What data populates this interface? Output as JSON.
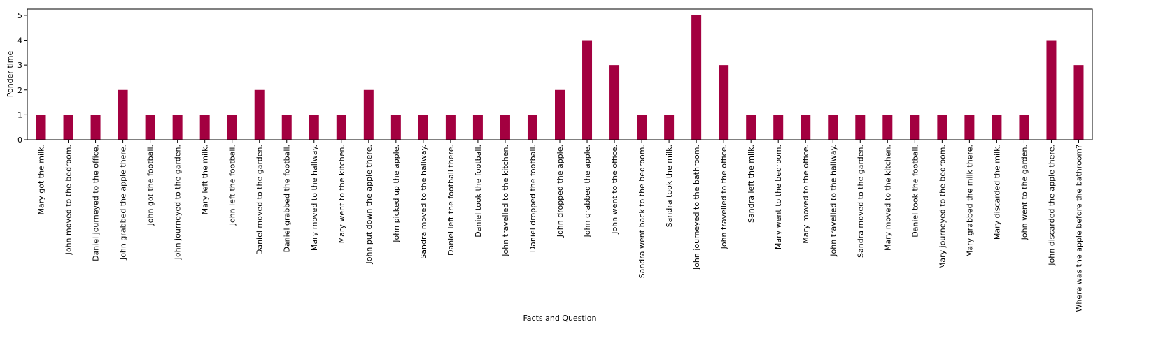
{
  "chart_data": {
    "type": "bar",
    "x_label": "Facts and Question",
    "y_label": "Ponder time",
    "categories": [
      "Mary got the milk.",
      "John moved to the bedroom.",
      "Daniel journeyed to the office.",
      "John grabbed the apple there.",
      "John got the football.",
      "John journeyed to the garden.",
      "Mary left the milk.",
      "John left the football.",
      "Daniel moved to the garden.",
      "Daniel grabbed the football.",
      "Mary moved to the hallway.",
      "Mary went to the kitchen.",
      "John put down the apple there.",
      "John picked up the apple.",
      "Sandra moved to the hallway.",
      "Daniel left the football there.",
      "Daniel took the football.",
      "John travelled to the kitchen.",
      "Daniel dropped the football.",
      "John dropped the apple.",
      "John grabbed the apple.",
      "John went to the office.",
      "Sandra went back to the bedroom.",
      "Sandra took the milk.",
      "John journeyed to the bathroom.",
      "John travelled to the office.",
      "Sandra left the milk.",
      "Mary went to the bedroom.",
      "Mary moved to the office.",
      "John travelled to the hallway.",
      "Sandra moved to the garden.",
      "Mary moved to the kitchen.",
      "Daniel took the football.",
      "Mary journeyed to the bedroom.",
      "Mary grabbed the milk there.",
      "Mary discarded the milk.",
      "John went to the garden.",
      "John discarded the apple there.",
      "Where was the apple before the bathroom?"
    ],
    "values": [
      1,
      1,
      1,
      2,
      1,
      1,
      1,
      1,
      2,
      1,
      1,
      1,
      2,
      1,
      1,
      1,
      1,
      1,
      1,
      2,
      4,
      3,
      1,
      1,
      5,
      3,
      1,
      1,
      1,
      1,
      1,
      1,
      1,
      1,
      1,
      1,
      1,
      4,
      3
    ],
    "color": "#a30040",
    "ylim": [
      0,
      5.25
    ],
    "yticks": [
      0,
      1,
      2,
      3,
      4,
      5
    ],
    "grid": false
  }
}
